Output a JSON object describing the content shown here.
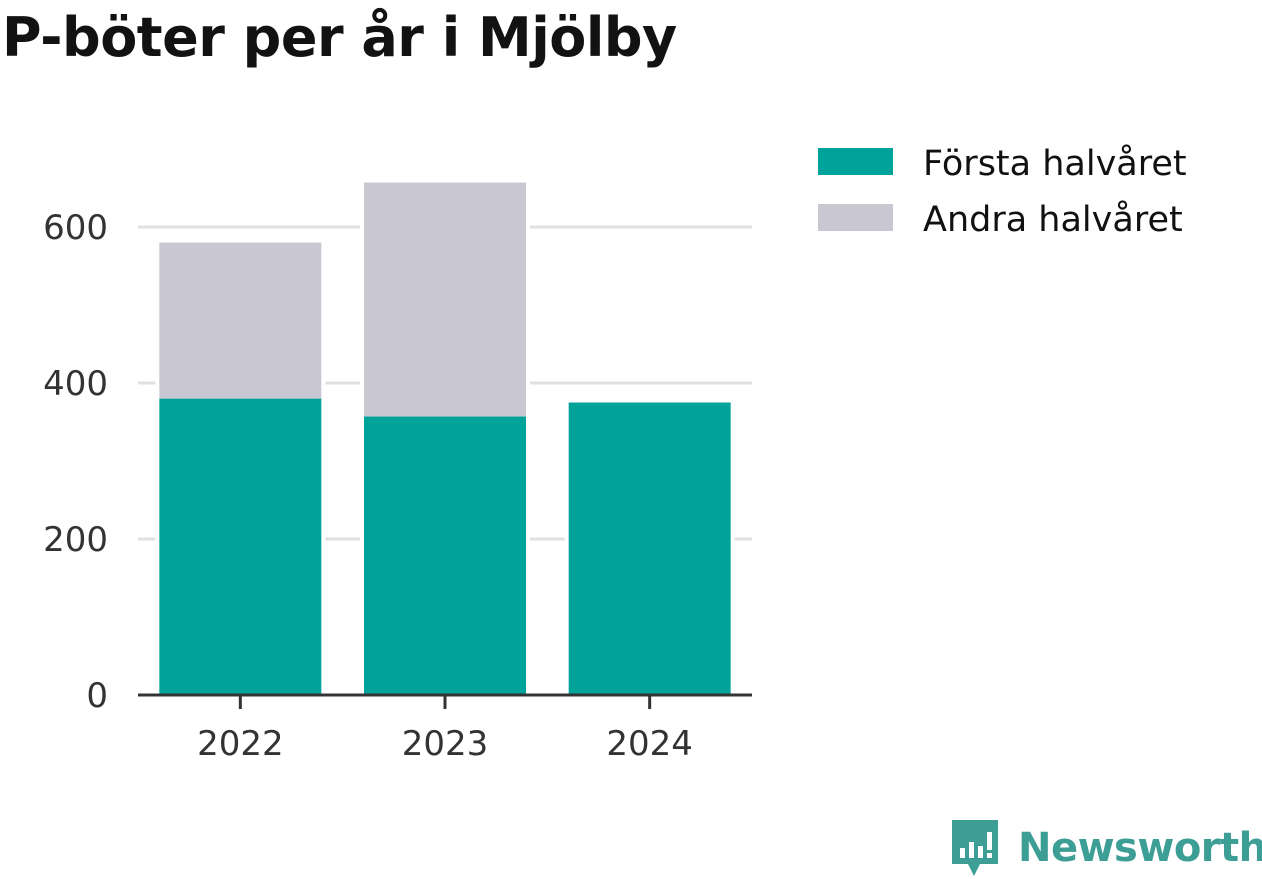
{
  "title": "P-böter per år i Mjölby",
  "chart_data": {
    "type": "bar",
    "stacked": true,
    "categories": [
      "2022",
      "2023",
      "2024"
    ],
    "series": [
      {
        "name": "Första halvåret",
        "color": "#00a39a",
        "values": [
          380,
          357,
          375
        ]
      },
      {
        "name": "Andra halvåret",
        "color": "#c8c7d2",
        "values": [
          200,
          300,
          0
        ]
      }
    ],
    "yticks": [
      0,
      200,
      400,
      600
    ],
    "ylim": [
      0,
      700
    ],
    "grid": true,
    "legend_position": "right"
  },
  "brand": {
    "name": "Newsworthy",
    "logo_color": "#3d9e96",
    "icon": "newsworthy-logo-icon"
  }
}
